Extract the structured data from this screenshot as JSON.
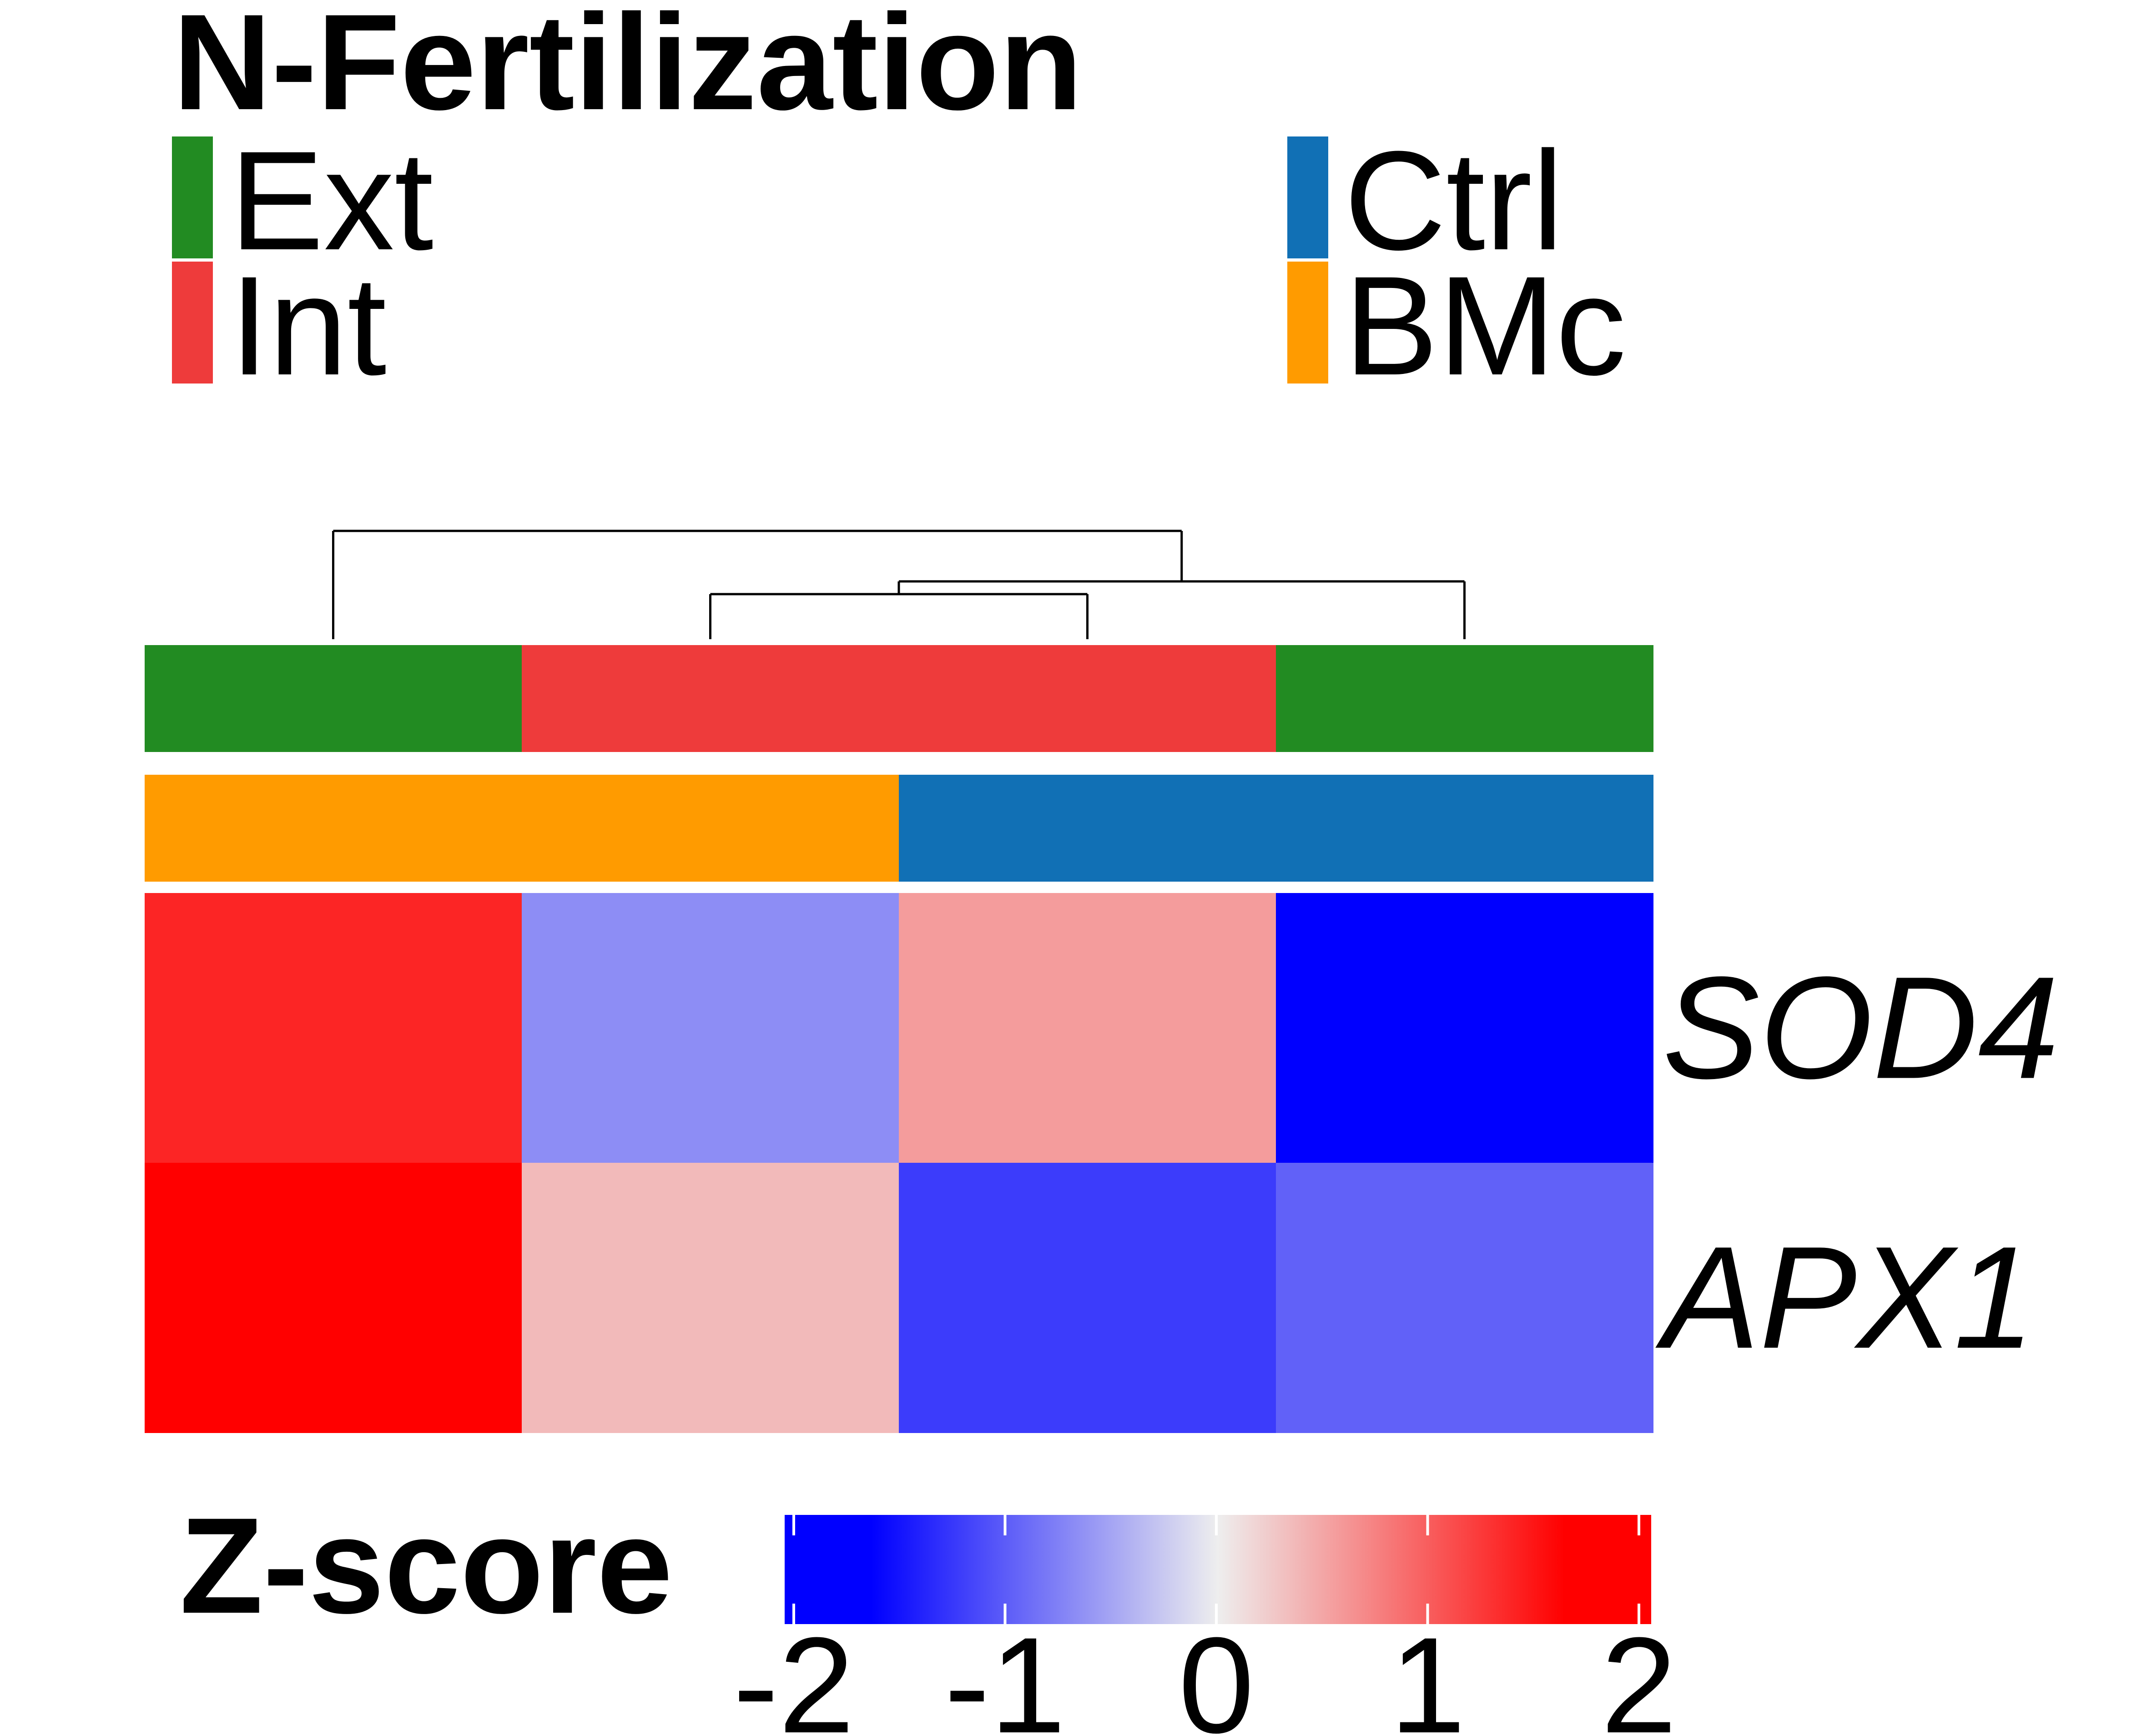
{
  "legend": {
    "title": "N-Fertilization",
    "items": [
      {
        "label": "Ext",
        "color": "#228B22"
      },
      {
        "label": "Int",
        "color": "#EE3B3B"
      },
      {
        "label": "Ctrl",
        "color": "#1170B5"
      },
      {
        "label": "BMc",
        "color": "#FF9B00"
      }
    ]
  },
  "chart_data": {
    "type": "heatmap",
    "rows": [
      "SOD4",
      "APX1"
    ],
    "columns": [
      {
        "fertilization": "Ext",
        "treatment": "BMc"
      },
      {
        "fertilization": "Int",
        "treatment": "BMc"
      },
      {
        "fertilization": "Int",
        "treatment": "Ctrl"
      },
      {
        "fertilization": "Ext",
        "treatment": "Ctrl"
      }
    ],
    "values": [
      [
        1.35,
        -0.65,
        0.55,
        -2.0
      ],
      [
        2.0,
        0.35,
        -1.2,
        -0.95
      ]
    ],
    "dendrogram": "((col1),((col2,col3),col4))",
    "colorbar": {
      "title": "Z-score",
      "ticks": [
        -2,
        -1,
        0,
        1,
        2
      ],
      "range": [
        -2,
        2
      ],
      "stops": [
        {
          "value": -2,
          "color": "#0000FF"
        },
        {
          "value": -1.6,
          "color": "#0000FF"
        },
        {
          "value": 0,
          "color": "#EEEEEE"
        },
        {
          "value": 1.6,
          "color": "#FF0000"
        },
        {
          "value": 2,
          "color": "#FF0000"
        }
      ]
    }
  }
}
